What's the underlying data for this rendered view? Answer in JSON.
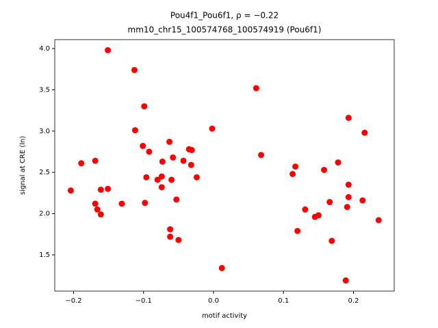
{
  "chart_data": {
    "type": "scatter",
    "title": "Pou4f1_Pou6f1, ρ = −0.22",
    "subtitle": "mm10_chr15_100574768_100574919 (Pou6f1)",
    "x_label": "motif activity",
    "y_label": "signal at CRE (ln)",
    "color": "#ff0000",
    "x": [
      -0.204,
      -0.189,
      -0.169,
      -0.169,
      -0.166,
      -0.161,
      -0.161,
      -0.151,
      -0.151,
      -0.131,
      -0.113,
      -0.112,
      -0.101,
      -0.099,
      -0.098,
      -0.096,
      -0.092,
      -0.08,
      -0.073,
      -0.074,
      -0.074,
      -0.063,
      -0.062,
      -0.062,
      -0.06,
      -0.058,
      -0.053,
      -0.05,
      -0.043,
      -0.035,
      -0.031,
      -0.032,
      -0.024,
      -0.002,
      0.012,
      0.061,
      0.068,
      0.113,
      0.117,
      0.12,
      0.131,
      0.145,
      0.15,
      0.158,
      0.166,
      0.169,
      0.178,
      0.189,
      0.191,
      0.193,
      0.193,
      0.193,
      0.213,
      0.216,
      0.236
    ],
    "values": [
      2.28,
      2.61,
      2.64,
      2.12,
      2.05,
      2.29,
      1.99,
      2.3,
      3.98,
      2.12,
      3.74,
      3.01,
      2.82,
      3.3,
      2.13,
      2.44,
      2.75,
      2.41,
      2.63,
      2.45,
      2.32,
      2.87,
      1.81,
      1.72,
      2.41,
      2.68,
      2.17,
      1.68,
      2.64,
      2.78,
      2.77,
      2.59,
      2.44,
      3.03,
      1.34,
      3.52,
      2.71,
      2.48,
      2.57,
      1.79,
      2.05,
      1.96,
      1.98,
      2.53,
      2.14,
      1.67,
      2.62,
      1.19,
      2.08,
      3.16,
      2.35,
      2.2,
      2.16,
      2.98,
      1.92
    ],
    "xlim": [
      -0.2269,
      0.2582
    ],
    "ylim": [
      1.061,
      4.108
    ],
    "xticks": [
      {
        "value": -0.2,
        "label": "−0.2"
      },
      {
        "value": -0.1,
        "label": "−0.1"
      },
      {
        "value": 0.0,
        "label": "0.0"
      },
      0.1,
      0.2
    ],
    "yticks": [
      1.5,
      {
        "value": 2.0,
        "label": "2.0"
      },
      2.5,
      {
        "value": 3.0,
        "label": "3.0"
      },
      3.5,
      {
        "value": 4.0,
        "label": "4.0"
      }
    ]
  }
}
